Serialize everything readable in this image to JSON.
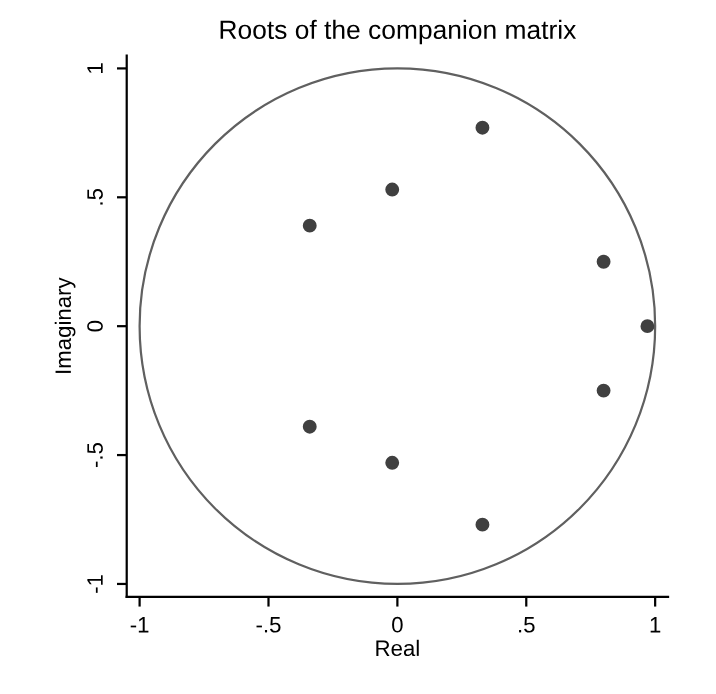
{
  "chart_data": {
    "type": "scatter",
    "title": "Roots of the companion matrix",
    "xlabel": "Real",
    "ylabel": "Imaginary",
    "xlim": [
      -1.05,
      1.05
    ],
    "ylim": [
      -1.05,
      1.05
    ],
    "xticks": [
      {
        "value": -1,
        "label": "-1"
      },
      {
        "value": -0.5,
        "label": "-.5"
      },
      {
        "value": 0,
        "label": "0"
      },
      {
        "value": 0.5,
        "label": ".5"
      },
      {
        "value": 1,
        "label": "1"
      }
    ],
    "yticks": [
      {
        "value": -1,
        "label": "-1"
      },
      {
        "value": -0.5,
        "label": "-.5"
      },
      {
        "value": 0,
        "label": "0"
      },
      {
        "value": 0.5,
        "label": ".5"
      },
      {
        "value": 1,
        "label": "1"
      }
    ],
    "grid": false,
    "marker": "circle",
    "series": [
      {
        "color": "#404040",
        "x": [
          0.97,
          0.8,
          0.8,
          0.33,
          0.33,
          -0.02,
          -0.02,
          -0.34,
          -0.34
        ],
        "values": [
          0,
          0.25,
          -0.25,
          0.77,
          -0.77,
          0.53,
          -0.53,
          0.39,
          -0.39
        ]
      }
    ]
  }
}
